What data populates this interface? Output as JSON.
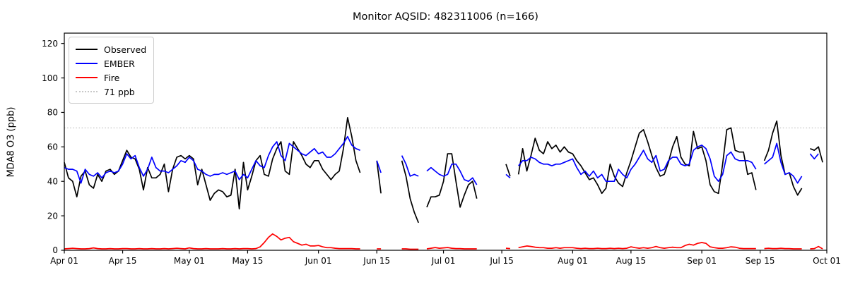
{
  "title": "Monitor AQSID: 482311006 (n=166)",
  "ylabel": "MDA8 O3 (ppb)",
  "chart_data": {
    "type": "line",
    "x_axis": {
      "unit": "day",
      "start_label": "Apr 01",
      "end_label": "Oct 01",
      "num_days": 183,
      "ticks": [
        {
          "day": 0,
          "label": "Apr 01"
        },
        {
          "day": 14,
          "label": "Apr 15"
        },
        {
          "day": 30,
          "label": "May 01"
        },
        {
          "day": 44,
          "label": "May 15"
        },
        {
          "day": 61,
          "label": "Jun 01"
        },
        {
          "day": 75,
          "label": "Jun 15"
        },
        {
          "day": 91,
          "label": "Jul 01"
        },
        {
          "day": 105,
          "label": "Jul 15"
        },
        {
          "day": 122,
          "label": "Aug 01"
        },
        {
          "day": 136,
          "label": "Aug 15"
        },
        {
          "day": 153,
          "label": "Sep 01"
        },
        {
          "day": 167,
          "label": "Sep 15"
        },
        {
          "day": 183,
          "label": "Oct 01"
        }
      ]
    },
    "y_axis": {
      "ticks": [
        0,
        20,
        40,
        60,
        80,
        100,
        120
      ],
      "lim": [
        0,
        126
      ]
    },
    "threshold": {
      "value": 71,
      "label": "71 ppb",
      "color": "#c8c8c8",
      "style": "dotted"
    },
    "series": [
      {
        "name": "Observed",
        "color": "#000000",
        "values": [
          51,
          42,
          40,
          31,
          43,
          46,
          38,
          36,
          44,
          40,
          46,
          47,
          44,
          46,
          52,
          58,
          54,
          53,
          47,
          35,
          48,
          42,
          42,
          44,
          50,
          34,
          47,
          54,
          55,
          53,
          55,
          53,
          38,
          47,
          38,
          29,
          33,
          35,
          34,
          31,
          32,
          47,
          24,
          51,
          35,
          43,
          52,
          55,
          44,
          43,
          53,
          59,
          63,
          46,
          44,
          63,
          59,
          55,
          50,
          48,
          52,
          52,
          47,
          44,
          41,
          44,
          46,
          59,
          77,
          66,
          52,
          45,
          null,
          null,
          null,
          52,
          33,
          null,
          null,
          null,
          null,
          52,
          43,
          30,
          22,
          16,
          null,
          25,
          31,
          31,
          32,
          40,
          56,
          56,
          40,
          25,
          32,
          38,
          40,
          30,
          null,
          null,
          null,
          null,
          null,
          null,
          50,
          43,
          null,
          44,
          59,
          46,
          55,
          65,
          58,
          56,
          63,
          59,
          61,
          57,
          60,
          57,
          56,
          52,
          49,
          45,
          41,
          42,
          38,
          33,
          36,
          50,
          43,
          39,
          37,
          45,
          52,
          60,
          68,
          70,
          63,
          55,
          48,
          43,
          44,
          51,
          60,
          66,
          54,
          50,
          49,
          69,
          59,
          60,
          52,
          38,
          34,
          33,
          50,
          70,
          71,
          58,
          57,
          57,
          44,
          45,
          35,
          null,
          52,
          58,
          68,
          75,
          55,
          44,
          45,
          37,
          32,
          36,
          null,
          59,
          58,
          60,
          51
        ]
      },
      {
        "name": "EMBER",
        "color": "#0000ff",
        "values": [
          48,
          47,
          47,
          46,
          39,
          47,
          44,
          43,
          45,
          42,
          45,
          46,
          45,
          46,
          50,
          56,
          53,
          55,
          48,
          43,
          47,
          54,
          48,
          46,
          46,
          45,
          47,
          49,
          52,
          51,
          54,
          52,
          47,
          46,
          44,
          43,
          44,
          44,
          45,
          44,
          45,
          46,
          41,
          44,
          42,
          47,
          52,
          49,
          48,
          55,
          60,
          63,
          55,
          52,
          62,
          60,
          58,
          56,
          55,
          57,
          59,
          56,
          57,
          54,
          54,
          56,
          59,
          62,
          66,
          61,
          59,
          58,
          null,
          null,
          null,
          52,
          45,
          null,
          null,
          null,
          null,
          55,
          50,
          43,
          44,
          43,
          null,
          46,
          48,
          46,
          44,
          43,
          44,
          50,
          50,
          46,
          41,
          40,
          42,
          38,
          null,
          null,
          null,
          null,
          null,
          null,
          44,
          42,
          null,
          49,
          52,
          52,
          54,
          53,
          51,
          50,
          50,
          49,
          50,
          50,
          51,
          52,
          53,
          48,
          44,
          46,
          43,
          46,
          42,
          44,
          40,
          40,
          40,
          47,
          44,
          42,
          47,
          50,
          54,
          58,
          53,
          51,
          55,
          46,
          47,
          52,
          54,
          54,
          50,
          49,
          50,
          58,
          60,
          61,
          59,
          53,
          43,
          40,
          44,
          55,
          57,
          53,
          52,
          52,
          52,
          51,
          47,
          null,
          50,
          52,
          54,
          62,
          51,
          44,
          45,
          43,
          39,
          43,
          null,
          56,
          53,
          56,
          null
        ]
      },
      {
        "name": "Fire",
        "color": "#ff0000",
        "values": [
          0.8,
          1,
          1.2,
          1,
          0.8,
          0.8,
          1,
          1.4,
          1,
          0.8,
          0.8,
          1,
          0.8,
          0.8,
          1,
          1,
          0.8,
          0.8,
          1,
          0.8,
          0.8,
          1,
          0.8,
          0.8,
          1,
          0.8,
          1,
          1.2,
          1,
          0.8,
          1.4,
          1,
          0.8,
          0.8,
          1,
          0.8,
          0.8,
          0.8,
          1,
          0.8,
          0.8,
          1,
          0.8,
          1,
          1,
          0.8,
          1,
          2,
          4.5,
          7.5,
          9.5,
          8,
          6,
          7,
          7.5,
          5,
          4,
          3,
          3.5,
          2.5,
          2.5,
          2.8,
          2,
          1.5,
          1.5,
          1.2,
          1,
          1,
          1,
          1,
          0.8,
          0.8,
          null,
          null,
          null,
          0.8,
          0.8,
          null,
          null,
          null,
          null,
          0.8,
          0.8,
          0.6,
          0.6,
          0.6,
          null,
          0.8,
          1.2,
          1.6,
          1.2,
          1.4,
          1.6,
          1.2,
          1,
          1,
          0.8,
          0.8,
          0.8,
          0.8,
          null,
          null,
          null,
          null,
          null,
          null,
          1.2,
          1,
          null,
          1.5,
          2,
          2.5,
          2.2,
          1.8,
          1.5,
          1.5,
          1.2,
          1.2,
          1.5,
          1.2,
          1.5,
          1.5,
          1.5,
          1.2,
          1,
          1.2,
          1,
          1,
          1.2,
          1,
          1,
          1.2,
          1,
          1.2,
          1,
          1.2,
          2,
          1.5,
          1.2,
          1.5,
          1.2,
          1.5,
          2.2,
          1.5,
          1.2,
          1.5,
          1.8,
          1.5,
          1.5,
          2.8,
          3.5,
          3,
          4,
          4.5,
          4,
          2,
          1.5,
          1.2,
          1.2,
          1.5,
          2,
          1.8,
          1.2,
          1,
          1,
          1,
          1,
          null,
          1,
          1.2,
          1,
          1,
          1.2,
          1,
          1,
          0.8,
          0.8,
          0.8,
          null,
          0.8,
          1,
          2.2,
          0.8
        ]
      }
    ],
    "legend": [
      {
        "label": "Observed",
        "color": "#000000",
        "dash": "solid"
      },
      {
        "label": "EMBER",
        "color": "#0000ff",
        "dash": "solid"
      },
      {
        "label": "Fire",
        "color": "#ff0000",
        "dash": "solid"
      },
      {
        "label": "71 ppb",
        "color": "#c8c8c8",
        "dash": "dotted"
      }
    ],
    "layout": {
      "plot_left": 91,
      "plot_right": 1170,
      "plot_top": 47,
      "plot_bottom": 355,
      "background": "#ffffff",
      "frame_color": "#000000",
      "grid": false,
      "legend_position": "upper-left"
    }
  }
}
